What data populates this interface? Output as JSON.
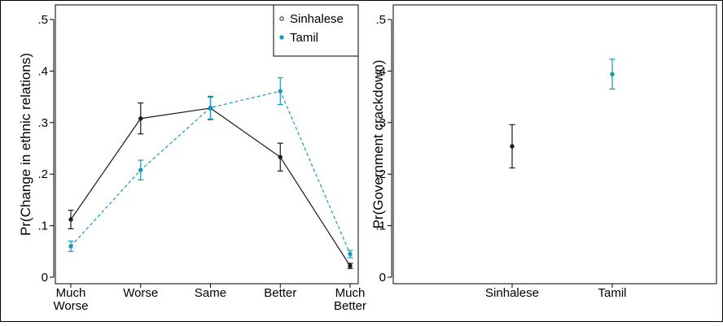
{
  "colors": {
    "sinhalese": "#1a1a1a",
    "tamil": "#1a97b8",
    "frame": "#000000",
    "background": "#ffffff"
  },
  "chart_data": [
    {
      "type": "line",
      "title": "",
      "xlabel": "",
      "ylabel": "Pr(Change in ethnic relations)",
      "ylim": [
        0,
        0.5
      ],
      "yticks": [
        0,
        0.1,
        0.2,
        0.3,
        0.4,
        0.5
      ],
      "ytick_labels": [
        "0",
        ".1",
        ".2",
        ".3",
        ".4",
        ".5"
      ],
      "categories": [
        [
          "Much",
          "Worse"
        ],
        [
          "Worse"
        ],
        [
          "Same"
        ],
        [
          "Better"
        ],
        [
          "Much",
          "Better"
        ]
      ],
      "legend": {
        "placement": "top-right",
        "entries": [
          "Sinhalese",
          "Tamil"
        ]
      },
      "series": [
        {
          "name": "Sinhalese",
          "color": "#1a1a1a",
          "line_style": "solid",
          "values": [
            0.112,
            0.308,
            0.328,
            0.233,
            0.022
          ],
          "ci_low": [
            0.094,
            0.278,
            0.306,
            0.206,
            0.017
          ],
          "ci_high": [
            0.13,
            0.338,
            0.35,
            0.26,
            0.027
          ]
        },
        {
          "name": "Tamil",
          "color": "#1a97b8",
          "line_style": "dashed",
          "values": [
            0.06,
            0.208,
            0.329,
            0.361,
            0.045
          ],
          "ci_low": [
            0.05,
            0.189,
            0.307,
            0.335,
            0.038
          ],
          "ci_high": [
            0.07,
            0.227,
            0.351,
            0.387,
            0.052
          ]
        }
      ]
    },
    {
      "type": "scatter",
      "title": "",
      "xlabel": "",
      "ylabel": "Pr(Government crackdown)",
      "ylim": [
        0,
        0.5
      ],
      "yticks": [
        0,
        0.1,
        0.2,
        0.3,
        0.4,
        0.5
      ],
      "ytick_labels": [
        "0",
        ".1",
        ".2",
        ".3",
        ".4",
        ".5"
      ],
      "categories": [
        "Sinhalese",
        "Tamil"
      ],
      "points": [
        {
          "category": "Sinhalese",
          "value": 0.254,
          "ci_low": 0.212,
          "ci_high": 0.296,
          "color": "#1a1a1a"
        },
        {
          "category": "Tamil",
          "value": 0.394,
          "ci_low": 0.365,
          "ci_high": 0.423,
          "color": "#1a97b8"
        }
      ]
    }
  ]
}
